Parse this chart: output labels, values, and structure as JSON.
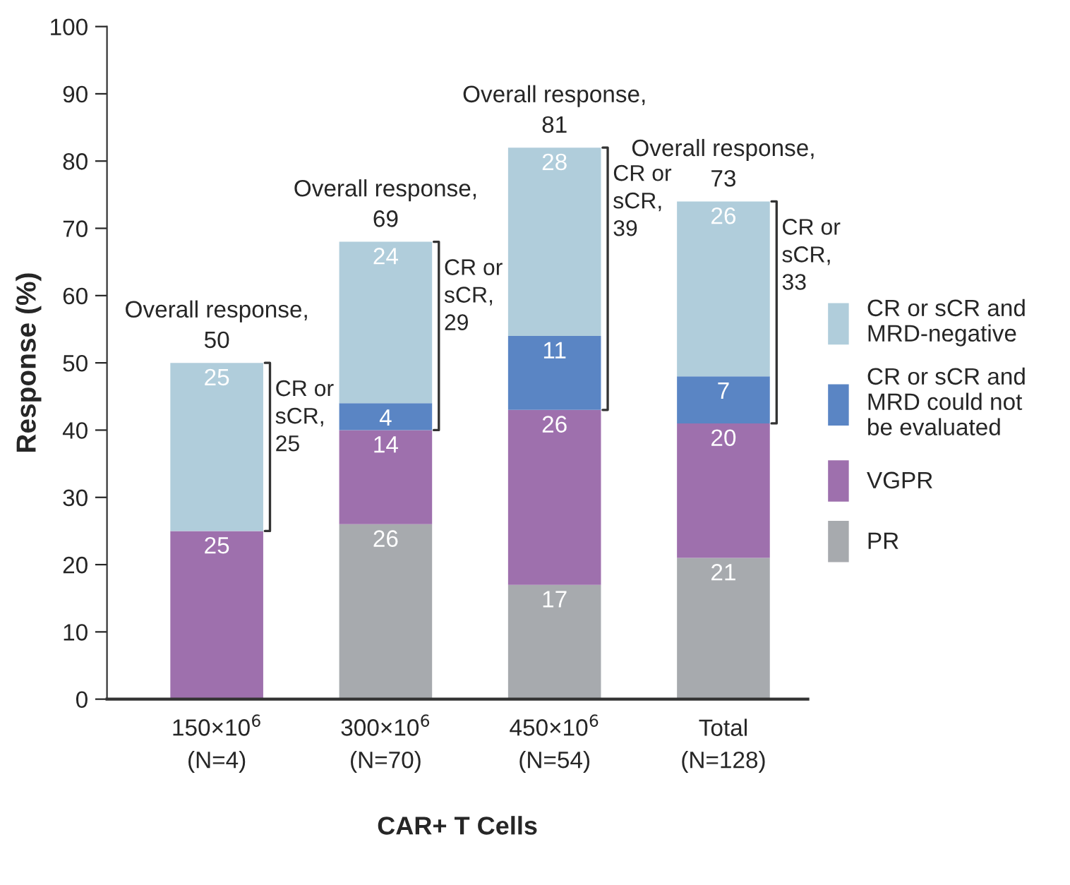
{
  "chart_data": {
    "type": "bar",
    "stacked": true,
    "xlabel": "CAR+ T Cells",
    "ylabel": "Response (%)",
    "categories": [
      "150×10$^{6}$\n(N=4)",
      "300×10$^{6}$\n(N=70)",
      "450×10$^{6}$\n(N=54)",
      "Total\n(N=128)"
    ],
    "series": [
      {
        "name": "PR",
        "color": "#a7aaae",
        "values": [
          0,
          26,
          17,
          21
        ],
        "value_labels": [
          null,
          "26",
          "17",
          "21"
        ]
      },
      {
        "name": "VGPR",
        "color": "#9e70ad",
        "values": [
          25,
          14,
          26,
          20
        ],
        "value_labels": [
          "25",
          "14",
          "26",
          "20"
        ]
      },
      {
        "name": "CR or sCR and\nMRD could not\nbe evaluated",
        "color": "#5a85c4",
        "values": [
          0,
          4,
          11,
          7
        ],
        "value_labels": [
          null,
          "4",
          "11",
          "7"
        ]
      },
      {
        "name": "CR or sCR and\nMRD-negative",
        "color": "#b0cddb",
        "values": [
          25,
          24,
          28,
          26
        ],
        "value_labels": [
          "25",
          "24",
          "28",
          "26"
        ]
      }
    ],
    "annotations": [
      {
        "text": "Overall response,\n50",
        "x": "150×10$^{6}$\n(N=4)",
        "y": 50
      },
      {
        "text": "Overall response,\n69",
        "x": "300×10$^{6}$\n(N=70)",
        "y": 68
      },
      {
        "text": "Overall response,\n81",
        "x": "450×10$^{6}$\n(N=54)",
        "y": 82
      },
      {
        "text": "Overall response,\n73",
        "x": "Total\n(N=128)",
        "y": 74
      },
      "CR or\nsCR,\n25",
      "CR or\nsCR,\n29",
      "CR or\nsCR,\n39",
      "CR or\nsCR,\n33"
    ],
    "ylim": [
      0,
      100
    ],
    "yticks": [
      0,
      10,
      20,
      30,
      40,
      50,
      60,
      70,
      80,
      90,
      100
    ],
    "grid": false,
    "legend": "right"
  }
}
